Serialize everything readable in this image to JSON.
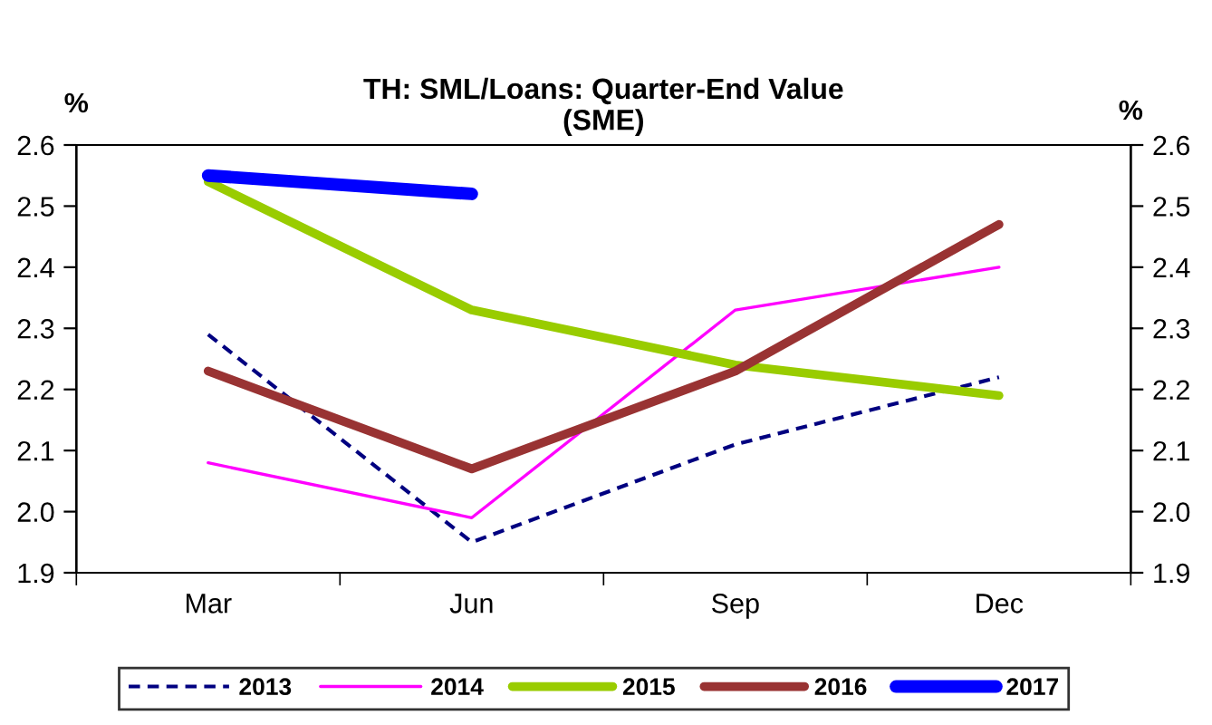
{
  "chart_data": {
    "type": "line",
    "title": "TH: SML/Loans: Quarter-End Value\n(SME)",
    "ylabel": "%",
    "y2label": "%",
    "categories": [
      "Mar",
      "Jun",
      "Sep",
      "Dec"
    ],
    "series": [
      {
        "name": "2013",
        "color": "#000080",
        "line_style": "dashed",
        "values": [
          2.29,
          1.95,
          2.11,
          2.22
        ]
      },
      {
        "name": "2014",
        "color": "#ff00ff",
        "values": [
          2.08,
          1.99,
          2.33,
          2.4
        ]
      },
      {
        "name": "2015",
        "color": "#99cc00",
        "values": [
          2.54,
          2.33,
          2.24,
          2.19
        ]
      },
      {
        "name": "2016",
        "color": "#993333",
        "values": [
          2.23,
          2.07,
          2.23,
          2.47
        ]
      },
      {
        "name": "2017",
        "color": "#0000ff",
        "values": [
          2.55,
          2.52,
          null,
          null
        ]
      }
    ],
    "ylim": [
      1.9,
      2.6
    ],
    "yticks": [
      1.9,
      {
        "value": 2.0,
        "label": "2.0"
      },
      2.1,
      2.2,
      2.3,
      2.4,
      2.5,
      2.6
    ],
    "y2lim": [
      1.9,
      2.6
    ],
    "y2ticks": [
      1.9,
      {
        "value": 2.0,
        "label": "2.0"
      },
      2.1,
      2.2,
      2.3,
      2.4,
      2.5,
      2.6
    ],
    "legend": "bottom",
    "grid": false,
    "marker": "none"
  }
}
